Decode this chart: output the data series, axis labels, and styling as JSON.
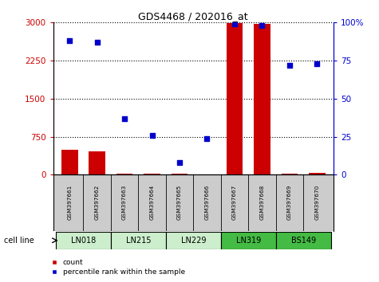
{
  "title": "GDS4468 / 202016_at",
  "samples": [
    "GSM397661",
    "GSM397662",
    "GSM397663",
    "GSM397664",
    "GSM397665",
    "GSM397666",
    "GSM397667",
    "GSM397668",
    "GSM397669",
    "GSM397670"
  ],
  "cell_lines": [
    {
      "name": "LN018",
      "samples": [
        0,
        1
      ],
      "color": "#cceecc"
    },
    {
      "name": "LN215",
      "samples": [
        2,
        3
      ],
      "color": "#cceecc"
    },
    {
      "name": "LN229",
      "samples": [
        4,
        5
      ],
      "color": "#cceecc"
    },
    {
      "name": "LN319",
      "samples": [
        6,
        7
      ],
      "color": "#44bb44"
    },
    {
      "name": "BS149",
      "samples": [
        8,
        9
      ],
      "color": "#44bb44"
    }
  ],
  "bar_values": [
    490,
    460,
    28,
    22,
    18,
    12,
    2985,
    2970,
    22,
    38
  ],
  "bar_color": "#cc0000",
  "percentile_values": [
    88,
    87,
    37,
    26,
    8,
    24,
    99,
    98,
    72,
    73
  ],
  "percentile_color": "#0000cc",
  "ylim_left": [
    0,
    3000
  ],
  "ylim_right": [
    0,
    100
  ],
  "yticks_left": [
    0,
    750,
    1500,
    2250,
    3000
  ],
  "yticks_right": [
    0,
    25,
    50,
    75,
    100
  ],
  "ytick_right_labels": [
    "0",
    "25",
    "50",
    "75",
    "100%"
  ],
  "grid_values": [
    750,
    1500,
    2250,
    3000
  ],
  "left_axis_color": "#cc0000",
  "right_axis_color": "#0000cc",
  "sample_bg": "#cccccc",
  "cell_line_label": "cell line",
  "legend_items": [
    {
      "label": "count",
      "color": "#cc0000"
    },
    {
      "label": "percentile rank within the sample",
      "color": "#0000cc"
    }
  ]
}
